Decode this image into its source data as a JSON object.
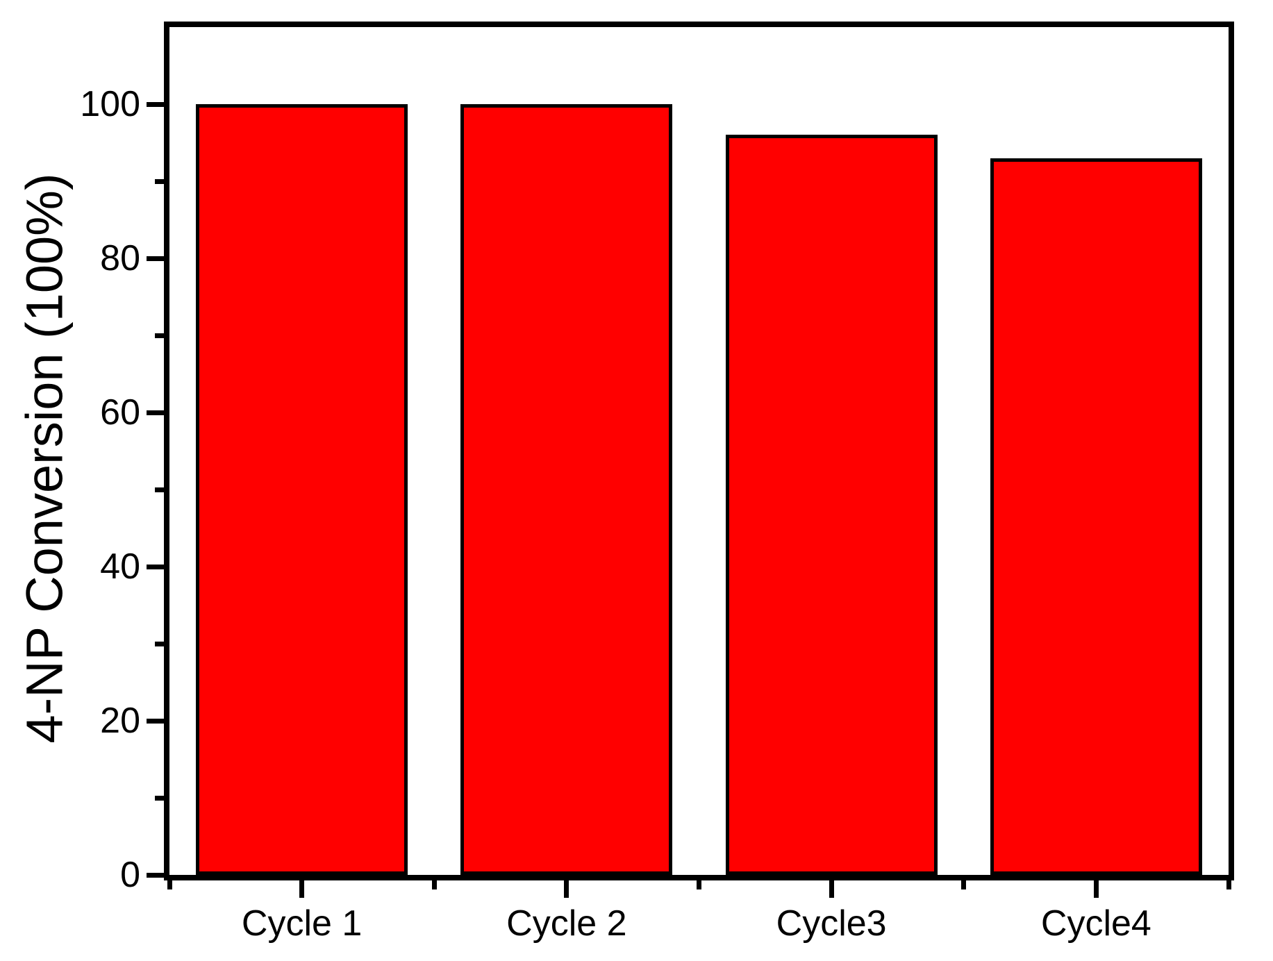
{
  "chart_data": {
    "type": "bar",
    "categories": [
      "Cycle 1",
      "Cycle 2",
      "Cycle3",
      "Cycle4"
    ],
    "values": [
      100,
      100,
      96,
      93
    ],
    "title": "",
    "xlabel": "",
    "ylabel": "4-NP Conversion (100%)",
    "ylim": [
      0,
      110
    ],
    "y_major_ticks": [
      0,
      20,
      40,
      60,
      80,
      100
    ],
    "y_minor_ticks": [
      10,
      30,
      50,
      70,
      90
    ],
    "bar_color": "#FF0000",
    "bar_border_color": "#000000",
    "frame_color": "#000000",
    "background_color": "#FFFFFF",
    "bar_width_fraction": 0.8,
    "grid": false,
    "legend": "none",
    "tick_direction": "out"
  }
}
